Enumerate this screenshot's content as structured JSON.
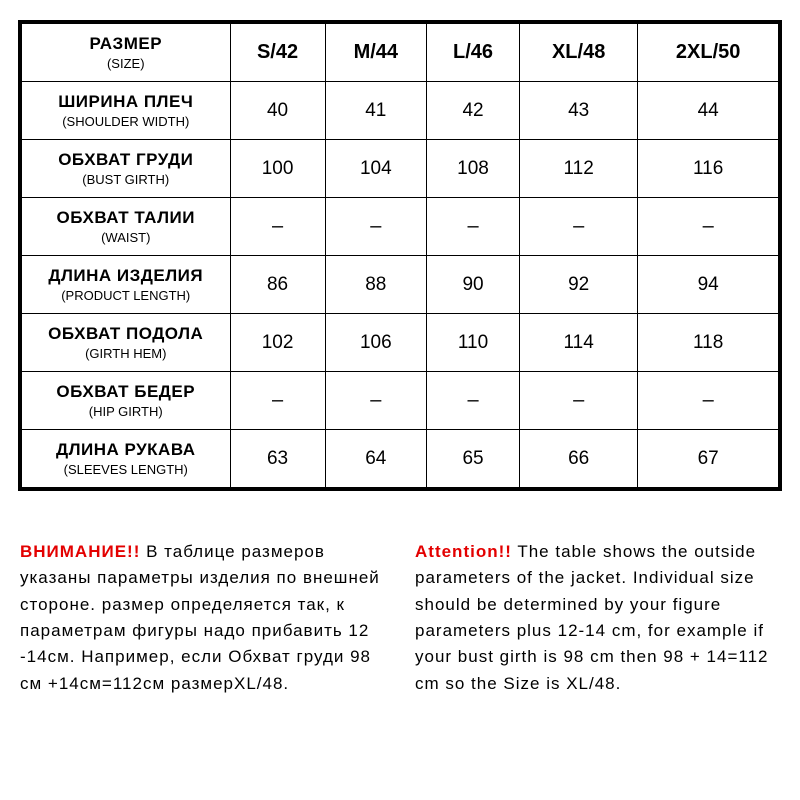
{
  "table": {
    "border_color": "#000000",
    "background": "#ffffff",
    "header": {
      "main": "РАЗМЕР",
      "sub": "(SIZE)"
    },
    "size_columns": [
      "S/42",
      "M/44",
      "L/46",
      "XL/48",
      "2XL/50"
    ],
    "rows": [
      {
        "main": "ШИРИНА ПЛЕЧ",
        "sub": "(SHOULDER WIDTH)",
        "values": [
          "40",
          "41",
          "42",
          "43",
          "44"
        ]
      },
      {
        "main": "ОБХВАТ ГРУДИ",
        "sub": "(BUST GIRTH)",
        "values": [
          "100",
          "104",
          "108",
          "112",
          "116"
        ]
      },
      {
        "main": "ОБХВАТ ТАЛИИ",
        "sub": "(WAIST)",
        "values": [
          "–",
          "–",
          "–",
          "–",
          "–"
        ]
      },
      {
        "main": "ДЛИНА ИЗДЕЛИЯ",
        "sub": "(PRODUCT LENGTH)",
        "values": [
          "86",
          "88",
          "90",
          "92",
          "94"
        ]
      },
      {
        "main": "ОБХВАТ ПОДОЛА",
        "sub": "(GIRTH HEM)",
        "values": [
          "102",
          "106",
          "110",
          "114",
          "118"
        ]
      },
      {
        "main": "ОБХВАТ БЕДЕР",
        "sub": "(HIP GIRTH)",
        "values": [
          "–",
          "–",
          "–",
          "–",
          "–"
        ]
      },
      {
        "main": "ДЛИНА РУКАВА",
        "sub": "(SLEEVES LENGTH)",
        "values": [
          "63",
          "64",
          "65",
          "66",
          "67"
        ]
      }
    ]
  },
  "notes": {
    "alert_color": "#e30000",
    "left": {
      "alert": "ВНИМАНИЕ!!",
      "text": " В таблице размеров указаны параметры изделия по внешней стороне. размер определяется так, к параметрам фигуры надо прибавить 12 -14см. Например, если Обхват груди  98 см +14см=112см  размерXL/48."
    },
    "right": {
      "alert": "Attention!!",
      "text": " The table shows the outside parameters of the jacket. Individual size should be determined by your figure parameters plus 12-14 cm, for example if your bust girth is  98  cm then  98  + 14=112 cm so the Size is XL/48."
    }
  }
}
